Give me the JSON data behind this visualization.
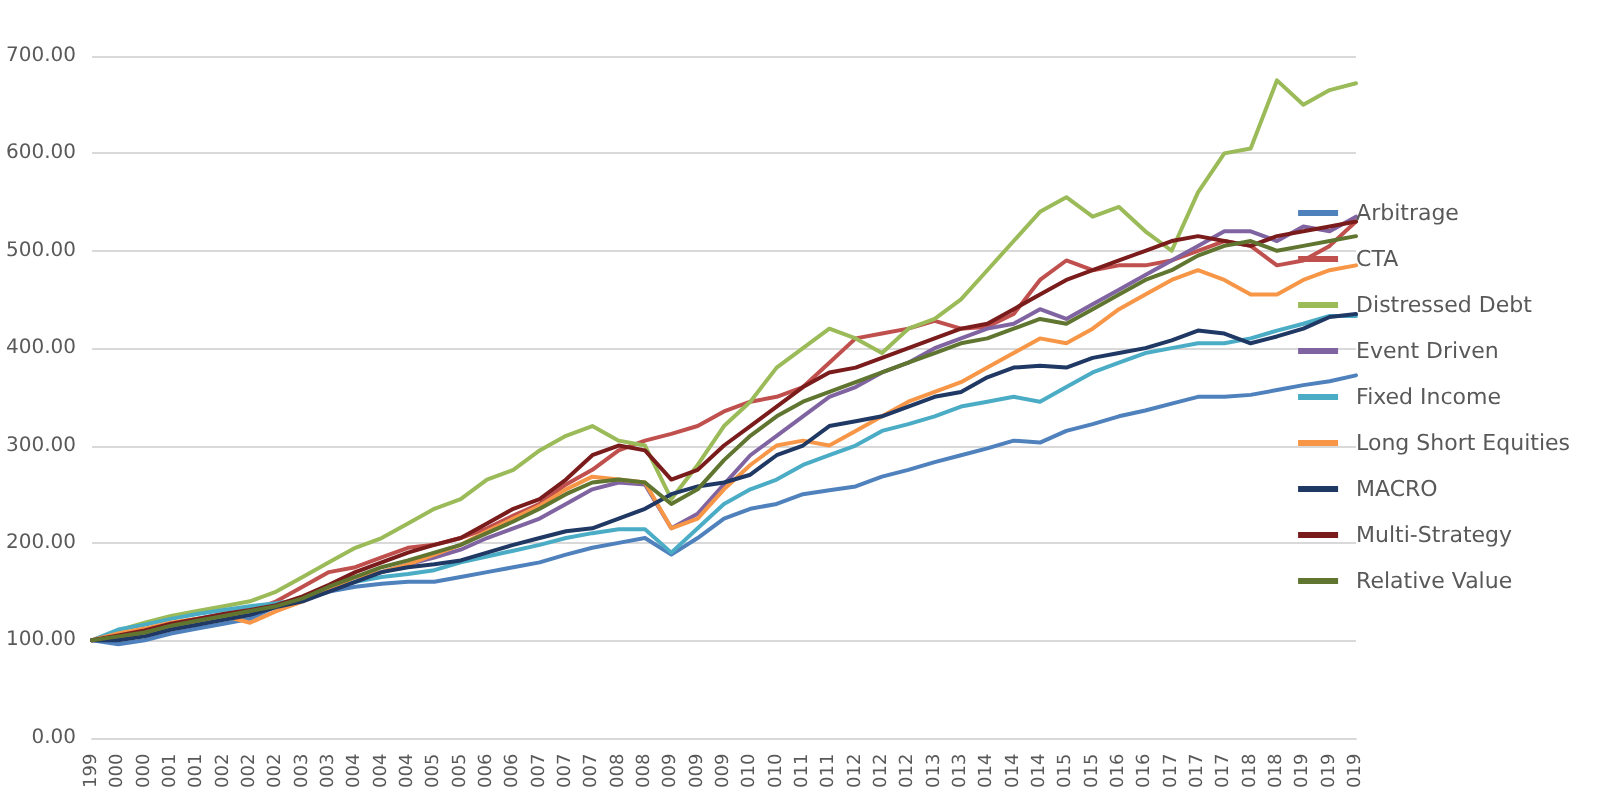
{
  "chart_data": {
    "type": "line",
    "categories": [
      "199",
      "000",
      "000",
      "001",
      "001",
      "002",
      "002",
      "002",
      "003",
      "003",
      "004",
      "004",
      "004",
      "005",
      "005",
      "006",
      "006",
      "007",
      "007",
      "007",
      "008",
      "008",
      "009",
      "009",
      "009",
      "010",
      "010",
      "011",
      "011",
      "012",
      "012",
      "012",
      "013",
      "013",
      "014",
      "014",
      "014",
      "015",
      "015",
      "016",
      "016",
      "017",
      "017",
      "017",
      "018",
      "018",
      "019",
      "019",
      "019"
    ],
    "ylim": [
      0,
      700
    ],
    "yticks": [
      {
        "value": 0,
        "label": "0.00"
      },
      {
        "value": 100,
        "label": "100.00"
      },
      {
        "value": 200,
        "label": "200.00"
      },
      {
        "value": 300,
        "label": "300.00"
      },
      {
        "value": 400,
        "label": "400.00"
      },
      {
        "value": 500,
        "label": "500.00"
      },
      {
        "value": 600,
        "label": "600.00"
      },
      {
        "value": 700,
        "label": "700.00"
      }
    ],
    "grid": "y",
    "legend": "right",
    "marker": "none",
    "line_style": "solid",
    "series": [
      {
        "name": "Arbitrage",
        "color": "#4f81bd",
        "values": [
          100,
          96,
          100,
          107,
          112,
          117,
          122,
          135,
          142,
          150,
          155,
          158,
          160,
          160,
          165,
          170,
          175,
          180,
          188,
          195,
          200,
          205,
          188,
          205,
          225,
          235,
          240,
          250,
          254,
          258,
          268,
          275,
          283,
          290,
          297,
          305,
          303,
          315,
          322,
          330,
          336,
          343,
          350,
          350,
          352,
          357,
          362,
          366,
          372
        ]
      },
      {
        "name": "CTA",
        "color": "#c0504d",
        "values": [
          100,
          103,
          108,
          115,
          120,
          125,
          130,
          140,
          155,
          170,
          175,
          185,
          195,
          198,
          205,
          215,
          228,
          240,
          260,
          275,
          295,
          305,
          312,
          320,
          335,
          345,
          350,
          360,
          385,
          410,
          415,
          420,
          428,
          420,
          422,
          435,
          470,
          490,
          480,
          485,
          485,
          490,
          500,
          510,
          505,
          485,
          490,
          505,
          530
        ]
      },
      {
        "name": "Distressed Debt",
        "color": "#9bbb59",
        "values": [
          100,
          110,
          118,
          125,
          130,
          135,
          140,
          150,
          165,
          180,
          195,
          205,
          220,
          235,
          245,
          265,
          275,
          295,
          310,
          320,
          305,
          300,
          245,
          280,
          320,
          345,
          380,
          400,
          420,
          410,
          395,
          420,
          430,
          450,
          480,
          510,
          540,
          555,
          535,
          545,
          520,
          500,
          560,
          600,
          605,
          675,
          650,
          665,
          672
        ]
      },
      {
        "name": "Event Driven",
        "color": "#8064a2",
        "values": [
          100,
          105,
          110,
          117,
          122,
          127,
          131,
          135,
          143,
          155,
          165,
          170,
          178,
          185,
          193,
          205,
          215,
          225,
          240,
          255,
          262,
          260,
          215,
          230,
          260,
          290,
          310,
          330,
          350,
          360,
          375,
          385,
          400,
          410,
          420,
          425,
          440,
          430,
          445,
          460,
          475,
          490,
          505,
          520,
          520,
          510,
          525,
          520,
          535
        ]
      },
      {
        "name": "Fixed Income",
        "color": "#4bacc6",
        "values": [
          100,
          111,
          116,
          122,
          127,
          131,
          135,
          138,
          142,
          152,
          160,
          165,
          168,
          172,
          180,
          186,
          192,
          198,
          205,
          210,
          214,
          214,
          190,
          215,
          240,
          255,
          265,
          280,
          290,
          300,
          315,
          322,
          330,
          340,
          345,
          350,
          345,
          360,
          375,
          385,
          395,
          400,
          405,
          405,
          410,
          418,
          425,
          433,
          433
        ]
      },
      {
        "name": "Long Short Equities",
        "color": "#f79646",
        "values": [
          100,
          107,
          112,
          118,
          122,
          125,
          118,
          130,
          140,
          152,
          165,
          170,
          178,
          188,
          198,
          212,
          225,
          238,
          255,
          268,
          265,
          262,
          215,
          225,
          255,
          280,
          300,
          305,
          300,
          315,
          330,
          345,
          355,
          365,
          380,
          395,
          410,
          405,
          420,
          440,
          455,
          470,
          480,
          470,
          455,
          455,
          470,
          480,
          485
        ]
      },
      {
        "name": "MACRO",
        "color": "#1f3864",
        "values": [
          100,
          100,
          104,
          111,
          116,
          121,
          126,
          134,
          140,
          150,
          160,
          170,
          175,
          178,
          182,
          190,
          198,
          205,
          212,
          215,
          225,
          235,
          250,
          258,
          262,
          270,
          290,
          300,
          320,
          325,
          330,
          340,
          350,
          355,
          370,
          380,
          382,
          380,
          390,
          395,
          400,
          408,
          418,
          415,
          405,
          412,
          420,
          432,
          435
        ]
      },
      {
        "name": "Multi-Strategy",
        "color": "#7b1c1c",
        "values": [
          100,
          105,
          110,
          117,
          122,
          127,
          131,
          136,
          145,
          157,
          170,
          180,
          190,
          198,
          205,
          220,
          235,
          245,
          265,
          290,
          300,
          295,
          265,
          275,
          300,
          320,
          340,
          360,
          375,
          380,
          390,
          400,
          410,
          420,
          425,
          440,
          455,
          470,
          480,
          490,
          500,
          510,
          515,
          510,
          505,
          515,
          520,
          525,
          530
        ]
      },
      {
        "name": "Relative Value",
        "color": "#5f7530",
        "values": [
          100,
          104,
          108,
          115,
          120,
          125,
          130,
          135,
          143,
          155,
          165,
          175,
          182,
          190,
          198,
          210,
          222,
          235,
          250,
          262,
          265,
          262,
          240,
          255,
          285,
          310,
          330,
          345,
          355,
          365,
          375,
          385,
          395,
          405,
          410,
          420,
          430,
          425,
          440,
          455,
          470,
          480,
          495,
          505,
          510,
          500,
          505,
          510,
          515
        ]
      }
    ]
  }
}
